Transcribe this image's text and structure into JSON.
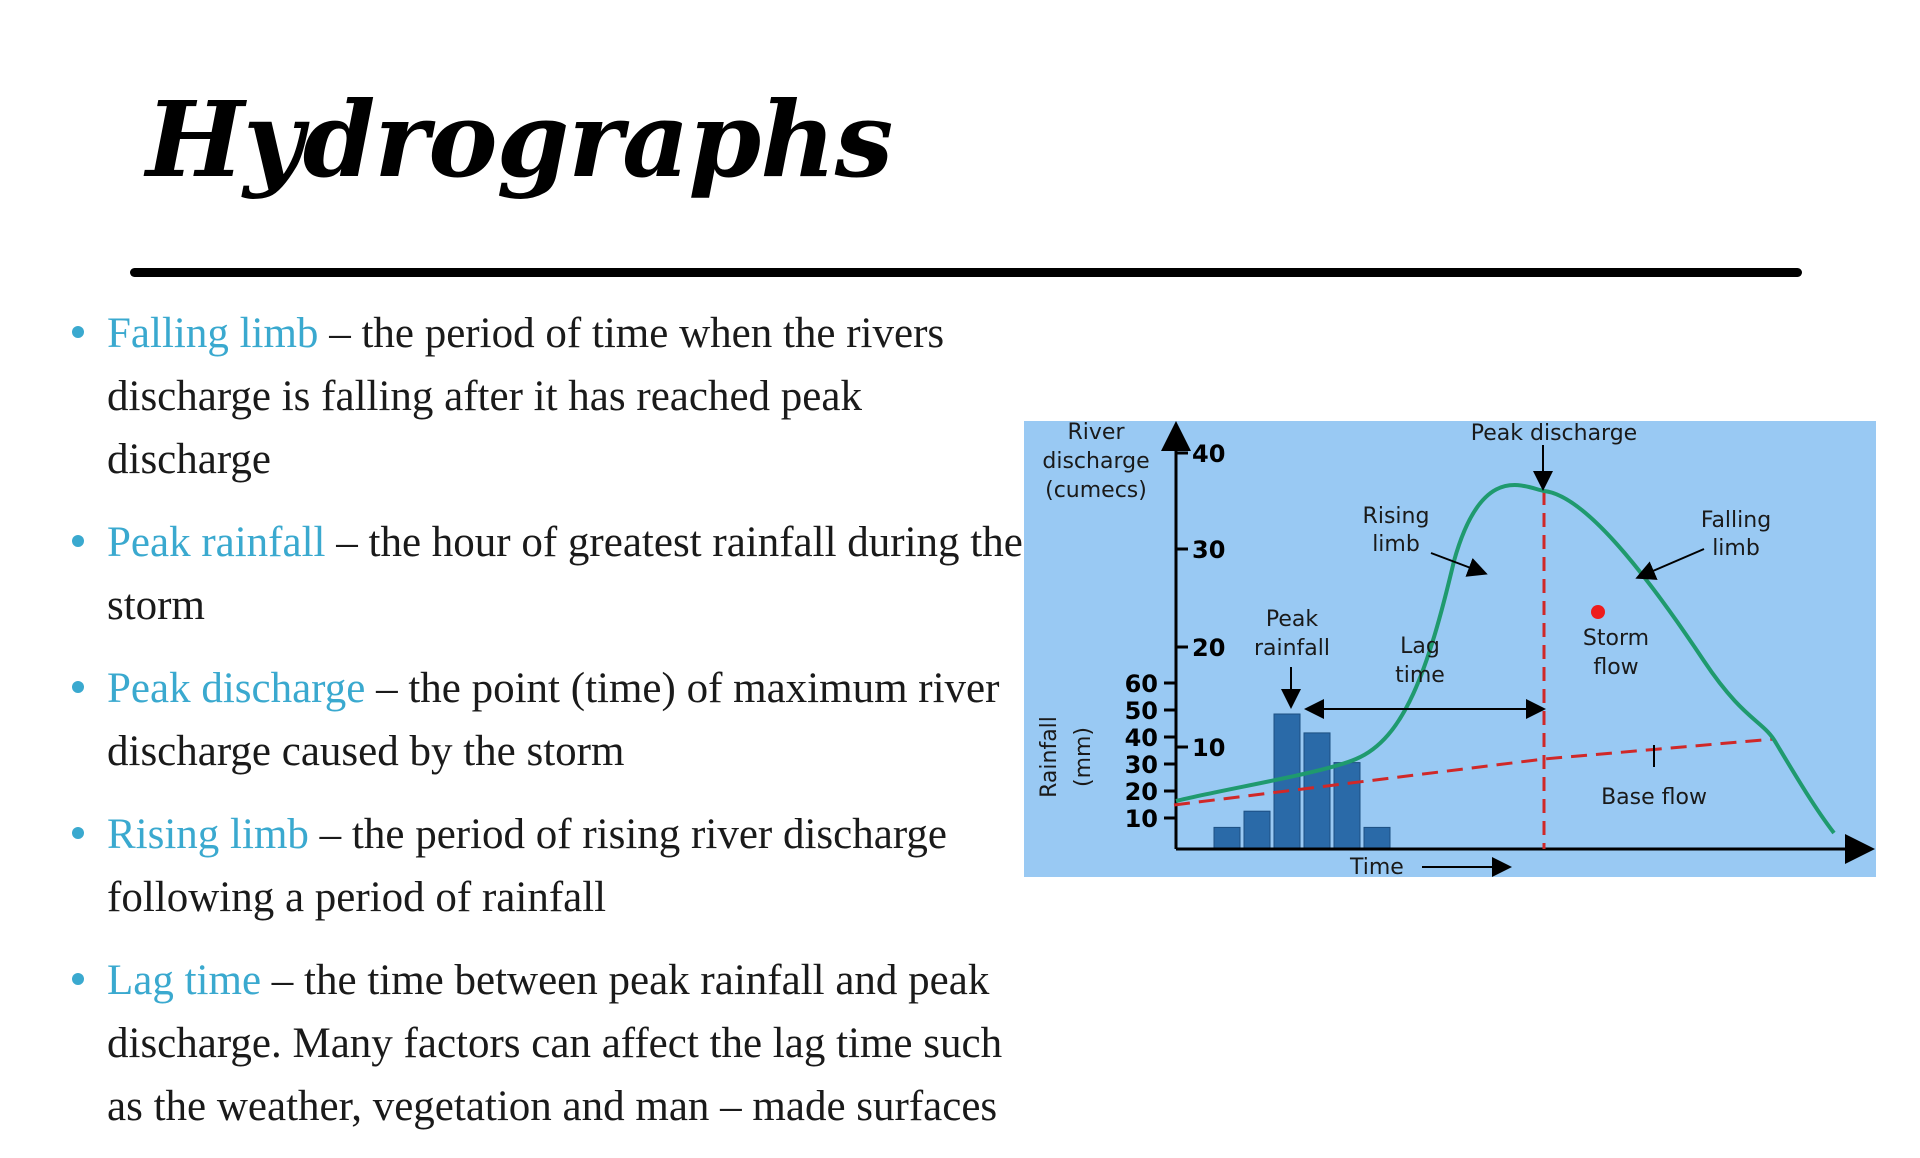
{
  "slide": {
    "title": "Hydrographs"
  },
  "bullets": [
    {
      "term": "Falling limb",
      "text": " – the period of time when the rivers discharge is falling after it has reached peak discharge"
    },
    {
      "term": "Peak rainfall",
      "text": " – the hour of greatest rainfall during the storm"
    },
    {
      "term": "Peak discharge",
      "text": " – the point (time) of maximum river discharge caused by the storm"
    },
    {
      "term": "Rising limb",
      "text": " – the period of rising river discharge following a period of rainfall"
    },
    {
      "term": "Lag time",
      "text": " – the time between peak rainfall and peak discharge. Many factors can affect the lag time such as the weather, vegetation and man – made surfaces"
    }
  ],
  "colors": {
    "accent": "#3aa9cf",
    "diagram_bg": "#99c9f3",
    "discharge_curve": "#1f9a6e",
    "base_flow": "#d02828",
    "rainfall_bar": "#2a6aa8"
  },
  "diagram": {
    "y_axis_label_lines": [
      "River",
      "discharge",
      "(cumecs)"
    ],
    "y_ticks": [
      "40",
      "30",
      "20",
      "10"
    ],
    "rain_axis_label": "Rainfall",
    "rain_axis_unit": "(mm)",
    "rain_ticks": [
      "60",
      "50",
      "40",
      "30",
      "20",
      "10"
    ],
    "x_axis_label": "Time",
    "labels": {
      "peak_discharge": "Peak discharge",
      "rising_limb_lines": [
        "Rising",
        "limb"
      ],
      "falling_limb_lines": [
        "Falling",
        "limb"
      ],
      "peak_rainfall_lines": [
        "Peak",
        "rainfall"
      ],
      "lag_time_lines": [
        "Lag",
        "time"
      ],
      "storm_flow_lines": [
        "Storm",
        "flow"
      ],
      "base_flow": "Base flow"
    },
    "rainfall_values_mm": [
      8,
      14,
      50,
      43,
      32,
      8
    ]
  }
}
